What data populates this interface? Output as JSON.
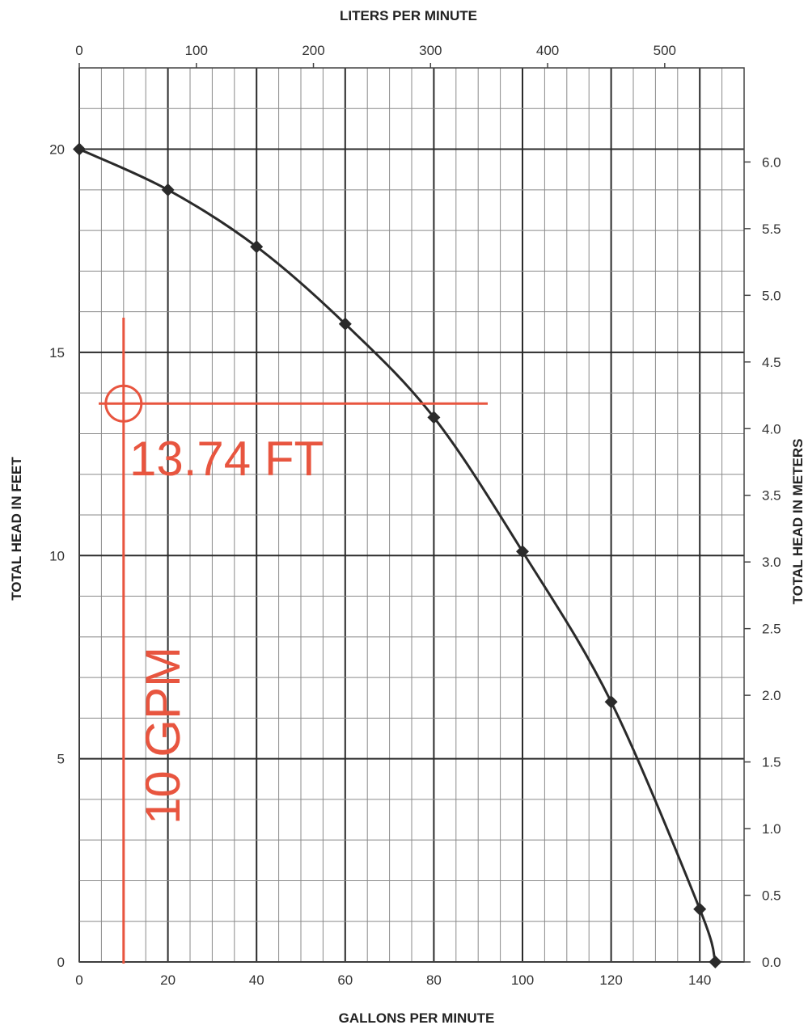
{
  "chart_data": {
    "type": "line",
    "title": "",
    "xlabel": "GALLONS PER MINUTE",
    "x2label": "LITERS PER MINUTE",
    "ylabel": "TOTAL HEAD IN FEET",
    "y2label": "TOTAL HEAD IN METERS",
    "xlim": [
      0,
      150
    ],
    "ylim": [
      0,
      22
    ],
    "x_ticks": [
      0,
      20,
      40,
      60,
      80,
      100,
      120,
      140
    ],
    "x_tick_labels": [
      "0",
      "20",
      "40",
      "60",
      "80",
      "100",
      "120",
      "140"
    ],
    "y_ticks": [
      0,
      5,
      10,
      15,
      20
    ],
    "y_tick_labels": [
      "0",
      "5",
      "10",
      "15",
      "20"
    ],
    "x2_ticks_lpm": [
      0,
      100,
      200,
      300,
      400,
      500
    ],
    "x2_tick_labels": [
      "0",
      "100",
      "200",
      "300",
      "400",
      "500"
    ],
    "y2_ticks_m": [
      0.0,
      0.5,
      1.0,
      1.5,
      2.0,
      2.5,
      3.0,
      3.5,
      4.0,
      4.5,
      5.0,
      5.5,
      6.0
    ],
    "y2_tick_labels": [
      "0.0",
      "0.5",
      "1.0",
      "1.5",
      "2.0",
      "2.5",
      "3.0",
      "3.5",
      "4.0",
      "4.5",
      "5.0",
      "5.5",
      "6.0"
    ],
    "grid": true,
    "series": [
      {
        "color": "#2a2a2a",
        "x": [
          0,
          20,
          40,
          60,
          80,
          100,
          120,
          140,
          143.5
        ],
        "y": [
          20,
          19,
          17.6,
          15.7,
          13.4,
          10.1,
          6.4,
          1.3,
          0
        ]
      }
    ],
    "annotations": [
      {
        "text": "13.74 FT",
        "y": 13.74,
        "color": "#e8553f"
      },
      {
        "text": "10 GPM",
        "x": 10,
        "color": "#e8553f"
      }
    ]
  }
}
